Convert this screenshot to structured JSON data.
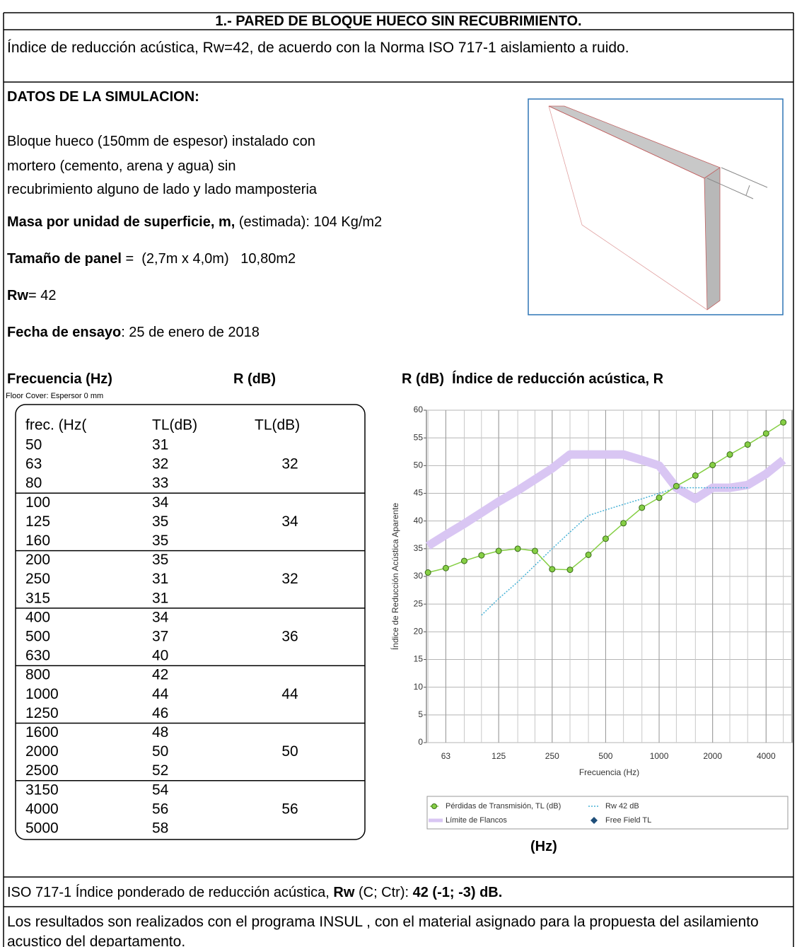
{
  "header": {
    "title": "1.- PARED DE BLOQUE HUECO SIN RECUBRIMIENTO."
  },
  "intro": "Índice de reducción acústica, Rw=42, de acuerdo con la Norma ISO 717-1 aislamiento a ruido.",
  "simulation": {
    "heading": "DATOS DE LA SIMULACION:",
    "description": [
      "Bloque hueco (150mm de espesor) instalado con",
      "mortero (cemento, arena y agua) sin",
      "recubrimiento alguno de lado y lado mamposteria"
    ],
    "mass": [
      "Masa por unidad de superficie, m,",
      " (estimada): 104 Kg/m2"
    ],
    "panel": [
      "Tamaño de panel",
      " =  (2,7m x 4,0m)   10,80m2"
    ],
    "rw": [
      "Rw",
      "= 42"
    ],
    "date": [
      "Fecha de ensayo",
      ": 25 de enero de 2018"
    ]
  },
  "section_headers": [
    "Frecuencia (Hz)",
    "R (dB)",
    "R (dB)  Índice de reducción acústica, R"
  ],
  "table": {
    "note": "Floor Cover: Espersor 0 mm",
    "columns": [
      "frec. (Hz(",
      "TL(dB)",
      "TL(dB)"
    ],
    "rows": [
      [
        50,
        31
      ],
      [
        63,
        32
      ],
      [
        80,
        33
      ],
      [
        100,
        34
      ],
      [
        125,
        35
      ],
      [
        160,
        35
      ],
      [
        200,
        35
      ],
      [
        250,
        31
      ],
      [
        315,
        31
      ],
      [
        400,
        34
      ],
      [
        500,
        37
      ],
      [
        630,
        40
      ],
      [
        800,
        42
      ],
      [
        1000,
        44
      ],
      [
        1250,
        46
      ],
      [
        1600,
        48
      ],
      [
        2000,
        50
      ],
      [
        2500,
        52
      ],
      [
        3150,
        54
      ],
      [
        4000,
        56
      ],
      [
        5000,
        58
      ]
    ],
    "groups": [
      32,
      34,
      32,
      36,
      44,
      50,
      56
    ]
  },
  "chart_data": {
    "type": "line",
    "x_label": "Frecuencia (Hz)",
    "y_label": "Índice de Reducción Acústica Aparente",
    "x": [
      50,
      63,
      80,
      100,
      125,
      160,
      200,
      250,
      315,
      400,
      500,
      630,
      800,
      1000,
      1250,
      1600,
      2000,
      2500,
      3150,
      4000,
      5000
    ],
    "log_x": true,
    "xlim": [
      49,
      5600
    ],
    "xticks": [
      63,
      125,
      250,
      500,
      1000,
      2000,
      4000
    ],
    "ylim": [
      0,
      60
    ],
    "yticks": [
      0,
      5,
      10,
      15,
      20,
      25,
      30,
      35,
      40,
      45,
      50,
      55,
      60
    ],
    "grid": true,
    "series": [
      {
        "name": "Límite de Flancos",
        "color": "#d9c6f3",
        "style": "band",
        "values": [
          35.5,
          37.5,
          39.5,
          41.5,
          43.5,
          45.5,
          47.5,
          49.5,
          52,
          52,
          52,
          52,
          51,
          50,
          46,
          44,
          46,
          46,
          46.5,
          48.5,
          51
        ]
      },
      {
        "name": "Rw 42 dB",
        "color": "#48b2d6",
        "style": "dotted",
        "values": [
          null,
          null,
          null,
          23,
          26,
          29,
          32,
          35,
          38,
          41,
          42,
          43,
          44,
          45,
          46,
          46,
          46,
          46,
          46,
          null,
          null
        ]
      },
      {
        "name": "Pérdidas de Transmisión, TL (dB)",
        "color": "#86cf45",
        "style": "markers",
        "values": [
          30.7,
          31.5,
          32.8,
          33.8,
          34.6,
          35,
          34.6,
          31.3,
          31.2,
          33.9,
          36.8,
          39.6,
          42.4,
          44.2,
          46.3,
          48.2,
          50.1,
          52,
          53.8,
          55.8,
          57.8
        ]
      },
      {
        "name": "Free Field TL",
        "color": "#1f4e79",
        "style": "diamond",
        "values": [
          null,
          null,
          null,
          null,
          null,
          null,
          null,
          null,
          null,
          null,
          null,
          null,
          null,
          null,
          null,
          null,
          null,
          null,
          null,
          null,
          null
        ]
      }
    ]
  },
  "chart_caption": "(Hz)",
  "footer": {
    "rating": [
      "ISO 717-1 Índice ponderado de reducción acústica, ",
      "Rw",
      " (C; Ctr): ",
      "42 (-1; -3) dB."
    ],
    "note": "Los resultados son realizados con el programa INSUL , con el material asignado para la propuesta del asilamiento acustico del departamento."
  }
}
